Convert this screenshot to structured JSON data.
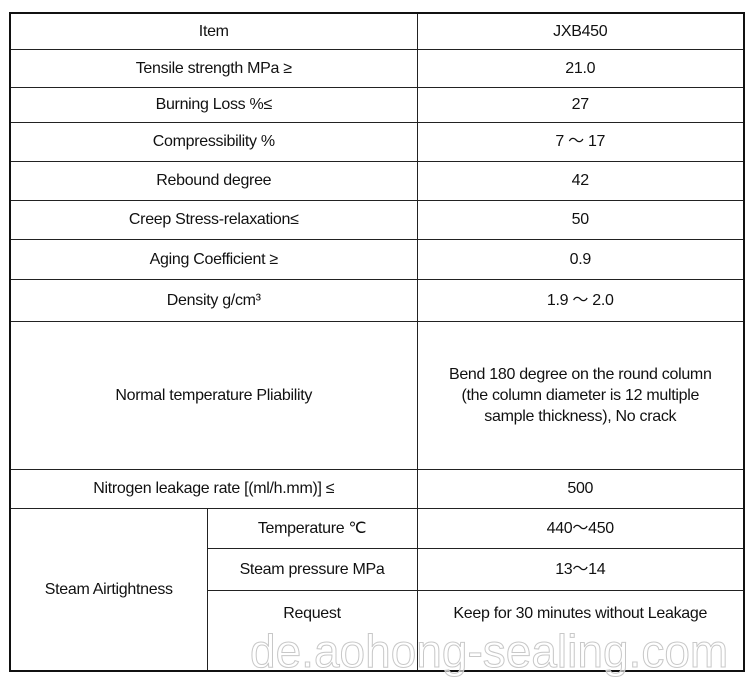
{
  "header": {
    "item": "Item",
    "model": "JXB450"
  },
  "rows": [
    {
      "label": "Tensile strength MPa ≥",
      "value": "21.0"
    },
    {
      "label": "Burning Loss %≤",
      "value": "27"
    },
    {
      "label": "Compressibility %",
      "value": "7 ～ 17"
    },
    {
      "label": "Rebound degree",
      "value": "42"
    },
    {
      "label": "Creep Stress-relaxation≤",
      "value": "50"
    },
    {
      "label": "Aging Coefficient ≥",
      "value": "0.9"
    },
    {
      "label": "Density g/cm³",
      "value": "1.9 ～ 2.0"
    },
    {
      "label": "Normal temperature Pliability",
      "value": "Bend 180 degree on the round column (the column diameter is 12 multiple sample thickness), No crack"
    },
    {
      "label": "Nitrogen leakage rate [(ml/h.mm)] ≤",
      "value": "500"
    }
  ],
  "steam": {
    "label": "Steam Airtightness",
    "sub": [
      {
        "label": "Temperature ℃",
        "value": "440～450"
      },
      {
        "label": "Steam pressure MPa",
        "value": "13～14"
      },
      {
        "label": "Request",
        "value": "Keep for 30 minutes without Leakage"
      }
    ]
  },
  "watermark": "de.aohong-sealing.com"
}
